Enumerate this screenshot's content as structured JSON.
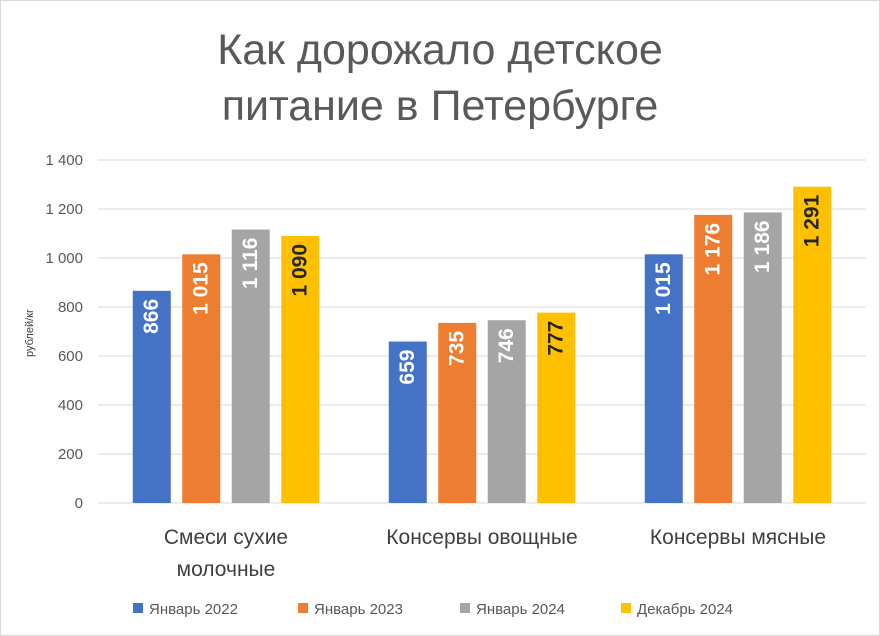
{
  "chart_data": {
    "type": "bar",
    "title_lines": [
      "Как дорожало детское",
      "питание в Петербурге"
    ],
    "ylabel": "рублей/кг",
    "xlabel": "",
    "ylim": [
      0,
      1400
    ],
    "yticks": [
      0,
      200,
      400,
      600,
      800,
      1000,
      1200,
      1400
    ],
    "ytick_labels": [
      "0",
      "200",
      "400",
      "600",
      "800",
      "1 000",
      "1 200",
      "1 400"
    ],
    "grid": true,
    "legend_position": "bottom",
    "categories": [
      [
        "Смеси сухие",
        "молочные"
      ],
      [
        "Консервы овощные"
      ],
      [
        "Консервы мясные"
      ]
    ],
    "series": [
      {
        "name": "Январь 2022",
        "color": "#4472c4",
        "label_color": "#ffffff",
        "values": [
          866,
          659,
          1015
        ],
        "labels": [
          "866",
          "659",
          "1 015"
        ]
      },
      {
        "name": "Январь 2023",
        "color": "#ed7d31",
        "label_color": "#ffffff",
        "values": [
          1015,
          735,
          1176
        ],
        "labels": [
          "1 015",
          "735",
          "1 176"
        ]
      },
      {
        "name": "Январь 2024",
        "color": "#a5a5a5",
        "label_color": "#ffffff",
        "values": [
          1116,
          746,
          1186
        ],
        "labels": [
          "1 116",
          "746",
          "1 186"
        ]
      },
      {
        "name": "Декабрь 2024",
        "color": "#ffc000",
        "label_color": "#262626",
        "values": [
          1090,
          777,
          1291
        ],
        "labels": [
          "1 090",
          "777",
          "1 291"
        ]
      }
    ]
  }
}
